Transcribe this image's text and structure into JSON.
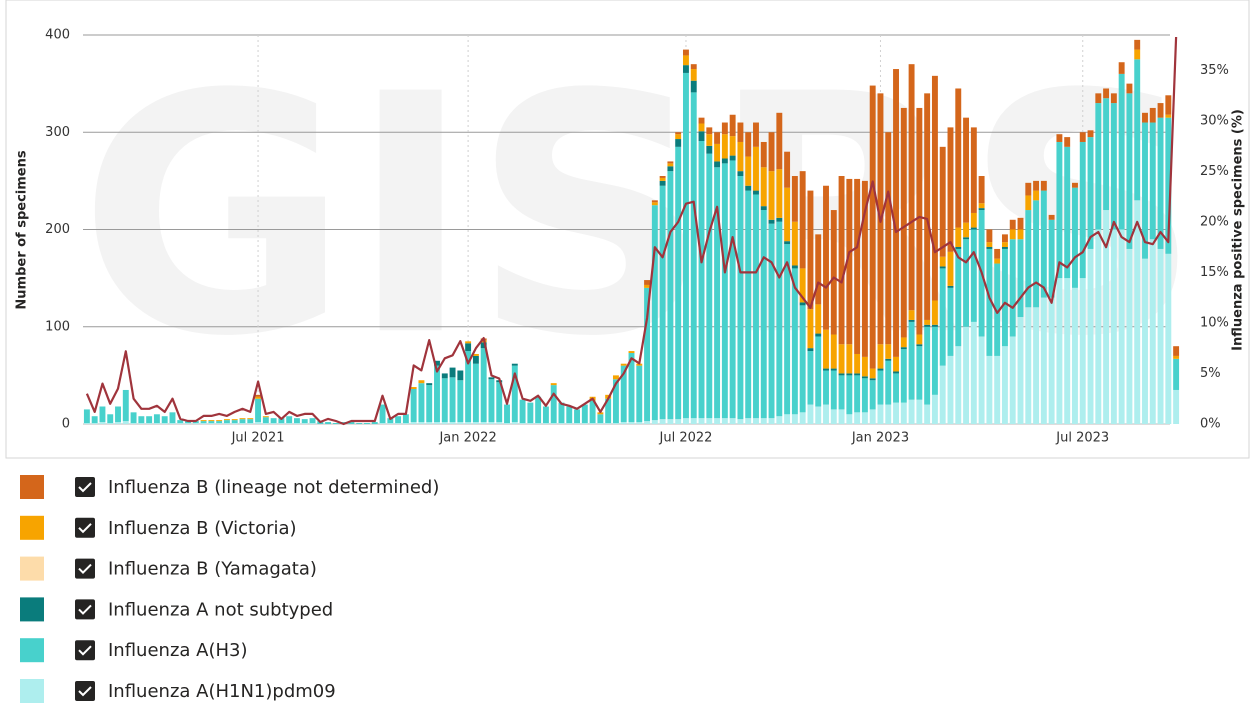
{
  "chart_data": {
    "type": "bar",
    "stacked": true,
    "watermark": "GISRS",
    "y_label": "Number of specimens",
    "y2_label": "Influenza positive specimens (%)",
    "ylim": [
      0,
      400
    ],
    "yticks": [
      0,
      100,
      200,
      300,
      400
    ],
    "y2lim": [
      0,
      38.5
    ],
    "y2ticks": [
      {
        "value": 0,
        "label": "0%"
      },
      {
        "value": 5,
        "label": "5%"
      },
      {
        "value": 10,
        "label": "10%"
      },
      {
        "value": 15,
        "label": "15%"
      },
      {
        "value": 20,
        "label": "20%"
      },
      {
        "value": 25,
        "label": "25%"
      },
      {
        "value": 30,
        "label": "30%"
      },
      {
        "value": 35,
        "label": "35%"
      }
    ],
    "grid": true,
    "legend": "bottom",
    "categories": [
      null,
      null,
      null,
      null,
      null,
      null,
      null,
      null,
      null,
      null,
      null,
      null,
      null,
      null,
      null,
      null,
      null,
      null,
      null,
      null,
      null,
      null,
      "Jul 2021",
      null,
      null,
      null,
      null,
      null,
      null,
      null,
      null,
      null,
      null,
      null,
      null,
      null,
      null,
      null,
      null,
      null,
      null,
      null,
      null,
      null,
      null,
      null,
      null,
      null,
      null,
      "Jan 2022",
      null,
      null,
      null,
      null,
      null,
      null,
      null,
      null,
      null,
      null,
      null,
      null,
      null,
      null,
      null,
      null,
      null,
      null,
      null,
      null,
      null,
      null,
      null,
      null,
      null,
      null,
      null,
      "Jul 2022",
      null,
      null,
      null,
      null,
      null,
      null,
      null,
      null,
      null,
      null,
      null,
      null,
      null,
      null,
      null,
      null,
      null,
      null,
      null,
      null,
      null,
      null,
      null,
      null,
      "Jan 2023",
      null,
      null,
      null,
      null,
      null,
      null,
      null,
      null,
      null,
      null,
      null,
      null,
      null,
      null,
      null,
      null,
      null,
      null,
      null,
      null,
      null,
      null,
      null,
      null,
      null,
      "Jul 2023",
      null,
      null,
      null,
      null,
      null,
      null,
      null,
      null,
      null,
      null,
      null,
      null
    ],
    "series": [
      {
        "name": "Influenza B (lineage not determined)",
        "color": "#d4661b",
        "values": [
          0,
          0,
          0,
          0,
          0,
          0,
          0,
          0,
          0,
          0,
          0,
          0,
          0,
          0,
          0,
          0,
          0,
          0,
          0,
          0,
          0,
          0,
          2,
          0,
          0,
          0,
          0,
          0,
          0,
          0,
          0,
          0,
          0,
          0,
          0,
          0,
          0,
          0,
          0,
          0,
          0,
          0,
          0,
          0,
          0,
          0,
          0,
          0,
          0,
          0,
          0,
          2,
          0,
          0,
          0,
          0,
          0,
          0,
          0,
          0,
          0,
          0,
          0,
          0,
          0,
          0,
          0,
          0,
          0,
          0,
          0,
          0,
          5,
          2,
          2,
          2,
          2,
          6,
          5,
          6,
          7,
          12,
          12,
          22,
          20,
          25,
          25,
          26,
          40,
          58,
          37,
          47,
          100,
          122,
          72,
          148,
          128,
          173,
          170,
          180,
          181,
          291,
          258,
          218,
          296,
          236,
          253,
          233,
          233,
          231,
          113,
          128,
          143,
          108,
          88,
          28,
          13,
          10,
          8,
          10,
          12,
          13,
          10,
          10,
          5,
          8,
          10,
          5,
          10,
          7,
          10,
          10,
          10,
          12,
          10,
          10,
          10,
          15,
          15,
          20,
          10
        ]
      },
      {
        "name": "Influenza B (Victoria)",
        "color": "#f7a400",
        "values": [
          0,
          0,
          0,
          0,
          0,
          0,
          0,
          0,
          0,
          0,
          0,
          0,
          0,
          0,
          0,
          1,
          1,
          1,
          1,
          1,
          1,
          1,
          2,
          1,
          0,
          0,
          0,
          0,
          0,
          0,
          0,
          0,
          0,
          0,
          0,
          0,
          0,
          0,
          0,
          0,
          0,
          0,
          2,
          3,
          0,
          0,
          0,
          0,
          0,
          2,
          2,
          2,
          0,
          0,
          0,
          0,
          0,
          0,
          0,
          0,
          2,
          0,
          0,
          0,
          0,
          4,
          2,
          4,
          4,
          2,
          2,
          2,
          3,
          3,
          3,
          3,
          5,
          10,
          12,
          8,
          12,
          18,
          25,
          20,
          30,
          30,
          45,
          40,
          50,
          50,
          55,
          45,
          35,
          40,
          30,
          40,
          35,
          30,
          30,
          20,
          20,
          10,
          25,
          15,
          15,
          10,
          10,
          10,
          5,
          25,
          10,
          35,
          20,
          15,
          15,
          5,
          5,
          5,
          5,
          10,
          10,
          15,
          10,
          0,
          0,
          0,
          0,
          0,
          0,
          0,
          0,
          0,
          0,
          0,
          0,
          10,
          0,
          0,
          0,
          3,
          3
        ]
      },
      {
        "name": "Influenza B (Yamagata)",
        "color": "#fddcaa",
        "values": [
          0,
          0,
          0,
          0,
          0,
          0,
          0,
          0,
          0,
          0,
          0,
          0,
          0,
          0,
          0,
          0,
          0,
          0,
          0,
          0,
          0,
          0,
          0,
          0,
          0,
          0,
          0,
          0,
          0,
          0,
          0,
          0,
          0,
          0,
          0,
          0,
          0,
          0,
          0,
          0,
          0,
          0,
          0,
          0,
          0,
          0,
          0,
          0,
          0,
          0,
          0,
          0,
          0,
          0,
          0,
          0,
          0,
          0,
          0,
          0,
          0,
          0,
          0,
          0,
          0,
          0,
          0,
          0,
          0,
          0,
          0,
          0,
          0,
          0,
          0,
          0,
          0,
          0,
          0,
          0,
          0,
          0,
          0,
          0,
          0,
          0,
          0,
          0,
          0,
          0,
          0,
          0,
          0,
          0,
          0,
          0,
          0,
          0,
          0,
          0,
          0,
          0,
          0,
          0,
          0,
          0,
          0,
          0,
          0,
          0,
          0,
          0,
          0,
          0,
          0,
          0,
          0,
          0,
          0,
          0,
          0,
          0,
          0,
          0,
          0,
          0,
          0,
          0,
          0,
          0,
          0,
          0,
          0,
          0,
          0,
          0,
          0,
          0,
          0,
          0,
          0
        ]
      },
      {
        "name": "Influenza A not subtyped",
        "color": "#0a7c7c",
        "values": [
          0,
          0,
          0,
          0,
          0,
          0,
          0,
          0,
          0,
          0,
          0,
          0,
          0,
          0,
          0,
          0,
          0,
          0,
          0,
          0,
          0,
          0,
          0,
          0,
          0,
          0,
          0,
          0,
          0,
          0,
          0,
          0,
          0,
          0,
          0,
          0,
          0,
          0,
          0,
          0,
          0,
          0,
          0,
          0,
          2,
          5,
          5,
          10,
          10,
          8,
          8,
          6,
          2,
          2,
          0,
          2,
          0,
          0,
          0,
          0,
          0,
          0,
          0,
          0,
          0,
          0,
          0,
          0,
          0,
          0,
          0,
          0,
          0,
          0,
          5,
          5,
          8,
          8,
          12,
          10,
          8,
          6,
          5,
          5,
          5,
          5,
          4,
          4,
          4,
          4,
          3,
          3,
          3,
          3,
          3,
          2,
          2,
          2,
          2,
          2,
          2,
          2,
          2,
          2,
          2,
          2,
          2,
          2,
          2,
          2,
          2,
          2,
          2,
          2,
          2,
          2,
          2,
          0,
          2,
          0,
          0,
          0,
          0,
          0,
          0,
          0,
          0,
          0,
          0,
          0,
          0,
          0,
          0,
          0,
          0,
          0,
          0,
          0,
          0,
          0,
          0
        ]
      },
      {
        "name": "Influenza A(H3)",
        "color": "#48d1cc",
        "values": [
          14,
          7,
          16,
          9,
          16,
          32,
          11,
          7,
          7,
          9,
          7,
          11,
          3,
          2,
          2,
          2,
          2,
          2,
          3,
          3,
          4,
          4,
          24,
          6,
          5,
          5,
          7,
          5,
          4,
          5,
          3,
          2,
          1,
          2,
          2,
          1,
          1,
          2,
          19,
          5,
          7,
          9,
          34,
          40,
          38,
          58,
          45,
          46,
          43,
          73,
          60,
          76,
          44,
          41,
          19,
          58,
          24,
          21,
          27,
          17,
          39,
          21,
          17,
          14,
          19,
          23,
          9,
          25,
          45,
          58,
          71,
          58,
          137,
          221,
          240,
          255,
          280,
          355,
          335,
          285,
          272,
          258,
          262,
          265,
          250,
          234,
          230,
          214,
          200,
          200,
          175,
          150,
          110,
          55,
          72,
          35,
          40,
          35,
          40,
          38,
          35,
          30,
          35,
          45,
          30,
          55,
          80,
          55,
          80,
          70,
          100,
          70,
          100,
          90,
          95,
          130,
          110,
          95,
          100,
          100,
          80,
          100,
          110,
          110,
          80,
          140,
          135,
          103,
          140,
          115,
          130,
          115,
          130,
          160,
          160,
          145,
          140,
          120,
          135,
          140,
          32
        ]
      },
      {
        "name": "Influenza A(H1N1)pdm09",
        "color": "#aeeeee",
        "values": [
          1,
          1,
          2,
          1,
          2,
          3,
          1,
          1,
          1,
          1,
          1,
          1,
          1,
          1,
          1,
          1,
          1,
          1,
          1,
          1,
          1,
          1,
          2,
          1,
          1,
          1,
          1,
          1,
          1,
          1,
          0,
          0,
          0,
          0,
          0,
          0,
          0,
          0,
          1,
          1,
          1,
          1,
          2,
          2,
          2,
          2,
          2,
          2,
          2,
          2,
          2,
          2,
          2,
          2,
          1,
          2,
          1,
          1,
          1,
          1,
          1,
          1,
          1,
          1,
          1,
          1,
          1,
          1,
          1,
          2,
          2,
          2,
          3,
          4,
          5,
          5,
          5,
          6,
          6,
          6,
          6,
          6,
          6,
          6,
          5,
          6,
          6,
          6,
          6,
          8,
          10,
          10,
          12,
          20,
          18,
          20,
          15,
          15,
          10,
          12,
          12,
          15,
          20,
          20,
          22,
          22,
          25,
          25,
          20,
          30,
          60,
          70,
          80,
          100,
          105,
          90,
          70,
          70,
          80,
          90,
          110,
          120,
          120,
          130,
          130,
          150,
          150,
          140,
          150,
          180,
          200,
          220,
          200,
          200,
          180,
          230,
          170,
          190,
          180,
          175,
          35
        ]
      },
      {
        "type": "line",
        "axis": "y2",
        "color": "#a0343c",
        "values": [
          3,
          1.2,
          4,
          2,
          3.5,
          7.2,
          2.5,
          1.5,
          1.5,
          1.8,
          1.2,
          2.5,
          0.5,
          0.3,
          0.3,
          0.8,
          0.8,
          1.0,
          0.8,
          1.2,
          1.5,
          1.2,
          4.2,
          1.0,
          1.2,
          0.5,
          1.2,
          0.8,
          1.0,
          1.0,
          0.2,
          0.5,
          0.3,
          0,
          0.3,
          0.3,
          0.3,
          0.3,
          2.8,
          0.5,
          1.0,
          1.0,
          5.8,
          5.3,
          8.3,
          5.2,
          6.5,
          6.8,
          8.2,
          6.0,
          7.5,
          8.5,
          4.8,
          4.5,
          2.0,
          5.0,
          2.5,
          2.3,
          2.8,
          1.8,
          3.0,
          2.0,
          1.8,
          1.5,
          2.0,
          2.5,
          1.2,
          2.5,
          4.0,
          5.0,
          6.5,
          6.0,
          10.5,
          17.5,
          16.5,
          19.0,
          20.0,
          21.8,
          22.0,
          16.0,
          19.0,
          21.5,
          15.0,
          18.5,
          15.0,
          15.0,
          15.0,
          16.5,
          16.0,
          14.5,
          16.0,
          13.5,
          12.5,
          11.5,
          14.0,
          13.5,
          14.5,
          14.0,
          17.0,
          17.5,
          21.0,
          24.0,
          20.0,
          23.0,
          19.0,
          19.5,
          20.0,
          20.5,
          20.3,
          17.0,
          17.5,
          18.0,
          16.5,
          16.0,
          17.0,
          15.0,
          12.5,
          11.0,
          12.0,
          11.5,
          12.5,
          13.5,
          14.0,
          13.5,
          12.0,
          16.0,
          15.5,
          16.5,
          17.0,
          18.5,
          19.0,
          17.5,
          20.0,
          18.5,
          18.0,
          20.0,
          18.0,
          17.8,
          19.0,
          18.0,
          38.3
        ]
      }
    ]
  }
}
